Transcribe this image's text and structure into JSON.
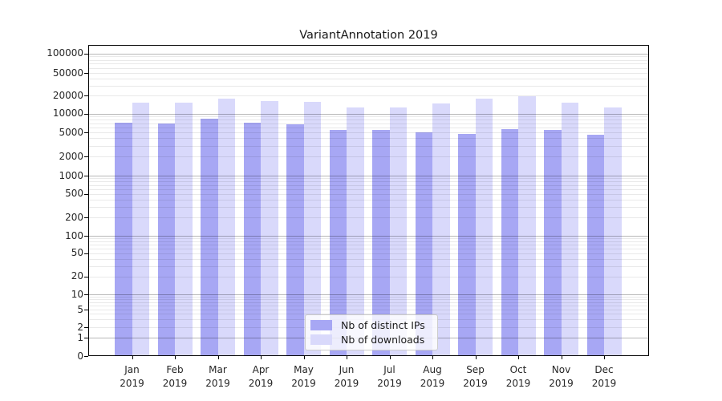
{
  "figure": {
    "title": "VariantAnnotation 2019"
  },
  "legend": {
    "items": [
      {
        "label": "Nb of distinct IPs",
        "color": "#a7a7f4"
      },
      {
        "label": "Nb of downloads",
        "color": "#d9d9fb"
      }
    ]
  },
  "chart_data": {
    "type": "bar",
    "title": "VariantAnnotation 2019",
    "categories": [
      "Jan 2019",
      "Feb 2019",
      "Mar 2019",
      "Apr 2019",
      "May 2019",
      "Jun 2019",
      "Jul 2019",
      "Aug 2019",
      "Sep 2019",
      "Oct 2019",
      "Nov 2019",
      "Dec 2019"
    ],
    "series": [
      {
        "name": "Nb of distinct IPs",
        "color": "#a7a7f4",
        "values": [
          7200,
          6900,
          8200,
          7200,
          6700,
          5400,
          5500,
          5000,
          4700,
          5700,
          5500,
          4600
        ]
      },
      {
        "name": "Nb of downloads",
        "color": "#d9d9fb",
        "values": [
          15300,
          15000,
          17800,
          16000,
          15900,
          12600,
          12700,
          14900,
          17500,
          19600,
          15000,
          12500
        ]
      }
    ],
    "y_axis": {
      "scale": "log (1-2-5 ticks), 0 baseline",
      "tick_labels": [
        "0",
        "1",
        "2",
        "5",
        "10",
        "20",
        "50",
        "100",
        "200",
        "500",
        "1000",
        "2000",
        "5000",
        "10000",
        "20000",
        "50000",
        "100000"
      ],
      "range": [
        0,
        100000
      ]
    },
    "x_axis": {
      "tick_label_lines": 2
    },
    "grid": true,
    "legend_position": "lower center (inside plot)"
  }
}
